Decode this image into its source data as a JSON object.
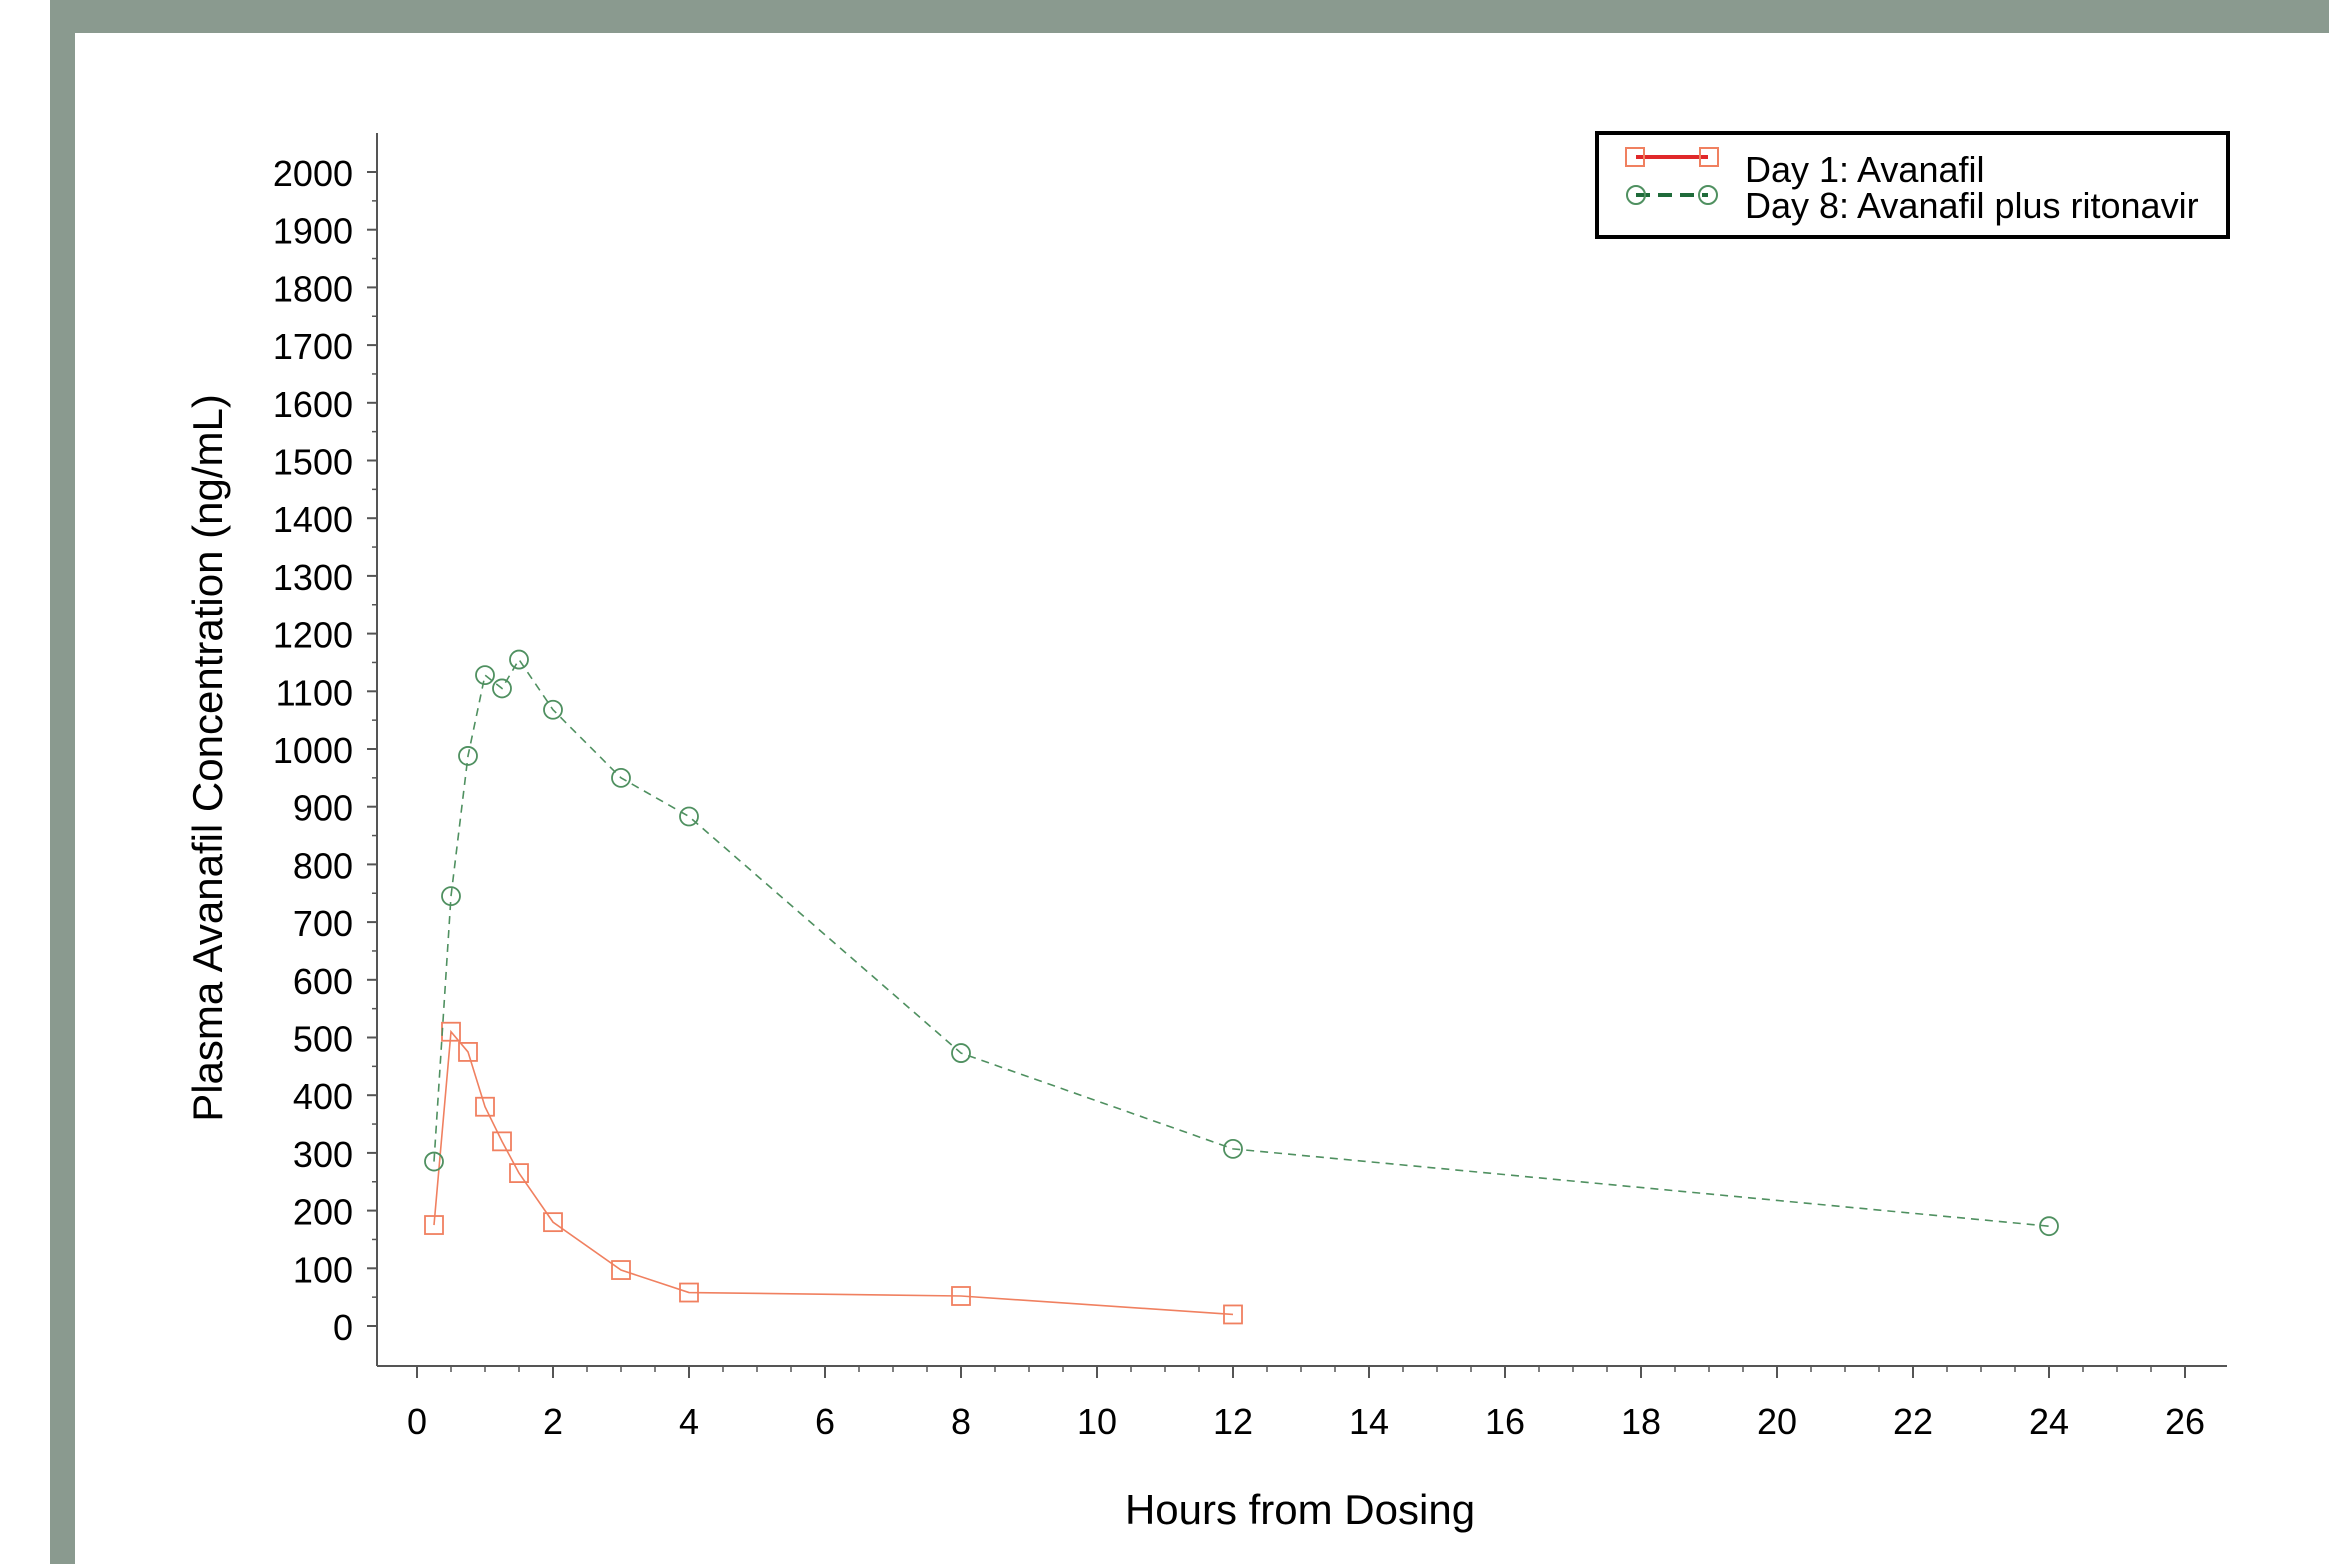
{
  "colors": {
    "frame": "#8a9a8f",
    "day1_series": "#f08060",
    "day8_series": "#4f9060",
    "legend_day1_line": "#e0282a",
    "legend_day8_line": "#1f6b3a",
    "axis": "#555555"
  },
  "chart_data": {
    "type": "line",
    "title": "",
    "xlabel": "Hours from Dosing",
    "ylabel": "Plasma Avanafil Concentration (ng/mL)",
    "xlim": [
      0,
      26
    ],
    "ylim": [
      0,
      2000
    ],
    "x_ticks": [
      "0",
      "2",
      "4",
      "6",
      "8",
      "10",
      "12",
      "14",
      "16",
      "18",
      "20",
      "22",
      "24",
      "26"
    ],
    "y_ticks": [
      "0",
      "100",
      "200",
      "300",
      "400",
      "500",
      "600",
      "700",
      "800",
      "900",
      "1000",
      "1100",
      "1200",
      "1300",
      "1400",
      "1500",
      "1600",
      "1700",
      "1800",
      "1900",
      "2000"
    ],
    "grid": false,
    "legend_position": "top-right",
    "series": [
      {
        "name": "Day 1: Avanafil",
        "marker": "square",
        "line_style": "solid",
        "x": [
          0.25,
          0.5,
          0.75,
          1,
          1.25,
          1.5,
          2,
          3,
          4,
          8,
          12
        ],
        "y": [
          175,
          510,
          475,
          380,
          320,
          265,
          180,
          97,
          58,
          52,
          20
        ]
      },
      {
        "name": "Day 8: Avanafil plus ritonavir",
        "marker": "circle",
        "line_style": "dashed",
        "x": [
          0.25,
          0.5,
          0.75,
          1,
          1.25,
          1.5,
          2,
          3,
          4,
          8,
          12,
          24
        ],
        "y": [
          285,
          745,
          988,
          1128,
          1105,
          1155,
          1068,
          950,
          883,
          473,
          307,
          173
        ]
      }
    ]
  }
}
